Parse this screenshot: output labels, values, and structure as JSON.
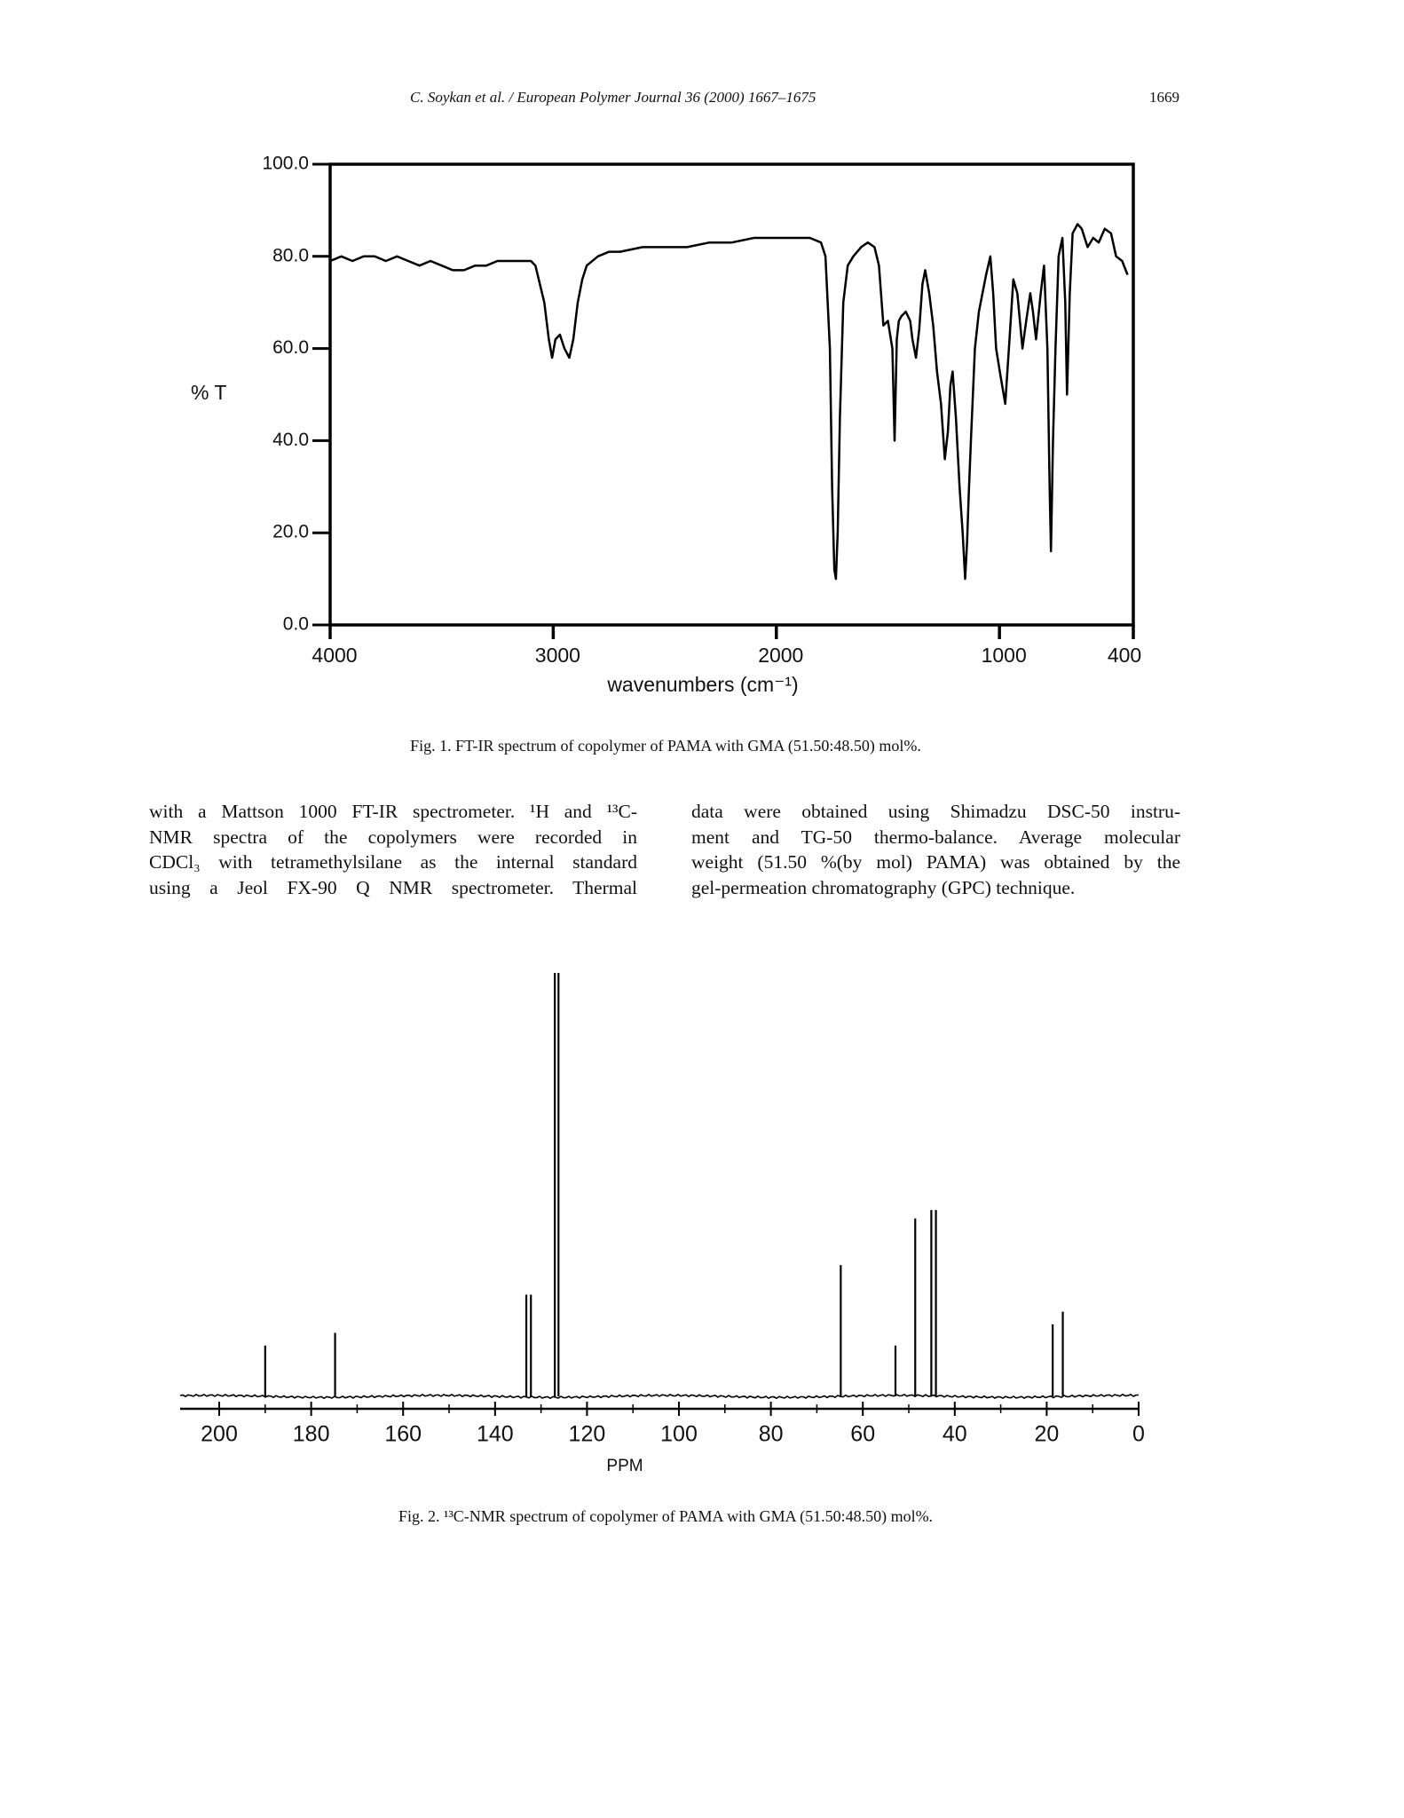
{
  "header": {
    "running_title": "C. Soykan et al. / European Polymer Journal 36 (2000) 1667–1675",
    "page_number": "1669"
  },
  "chart_data": [
    {
      "type": "line",
      "ylabel": "% T",
      "xlabel": "wavenumbers (cm⁻¹)",
      "x": [
        4000,
        3950,
        3900,
        3850,
        3800,
        3750,
        3700,
        3650,
        3600,
        3550,
        3500,
        3450,
        3400,
        3350,
        3300,
        3250,
        3200,
        3150,
        3100,
        3080,
        3060,
        3040,
        3020,
        3005,
        2990,
        2970,
        2950,
        2928,
        2910,
        2890,
        2870,
        2850,
        2800,
        2750,
        2700,
        2600,
        2500,
        2400,
        2300,
        2200,
        2100,
        2000,
        1900,
        1850,
        1800,
        1780,
        1760,
        1750,
        1740,
        1733,
        1725,
        1715,
        1700,
        1680,
        1655,
        1620,
        1590,
        1560,
        1540,
        1520,
        1500,
        1480,
        1470,
        1460,
        1451,
        1440,
        1420,
        1400,
        1390,
        1374,
        1360,
        1345,
        1333,
        1315,
        1297,
        1280,
        1262,
        1245,
        1231,
        1220,
        1210,
        1195,
        1179,
        1165,
        1154,
        1145,
        1138,
        1128,
        1110,
        1092,
        1060,
        1041,
        1028,
        1015,
        995,
        974,
        955,
        938,
        920,
        897,
        880,
        862,
        850,
        836,
        815,
        800,
        785,
        775,
        769,
        760,
        749,
        735,
        718,
        705,
        697,
        685,
        672,
        650,
        631,
        605,
        580,
        555,
        528,
        500,
        477,
        450,
        426
      ],
      "values": [
        79,
        80,
        79,
        80,
        80,
        79,
        80,
        79,
        78,
        79,
        78,
        77,
        77,
        78,
        78,
        79,
        79,
        79,
        79,
        78,
        74,
        70,
        62,
        58,
        62,
        63,
        60,
        58,
        62,
        70,
        75,
        78,
        80,
        81,
        81,
        82,
        82,
        82,
        83,
        83,
        84,
        84,
        84,
        84,
        83,
        80,
        60,
        30,
        12,
        10,
        20,
        45,
        70,
        78,
        80,
        82,
        83,
        82,
        78,
        65,
        66,
        60,
        40,
        62,
        66,
        67,
        68,
        66,
        62,
        58,
        64,
        74,
        77,
        72,
        65,
        55,
        48,
        36,
        42,
        52,
        55,
        45,
        30,
        20,
        10,
        18,
        28,
        40,
        60,
        68,
        76,
        80,
        72,
        60,
        54,
        48,
        62,
        75,
        72,
        60,
        66,
        72,
        68,
        62,
        72,
        78,
        60,
        30,
        16,
        40,
        60,
        80,
        84,
        70,
        50,
        72,
        85,
        87,
        86,
        82,
        84,
        83,
        86,
        85,
        80,
        79,
        76
      ],
      "color": "#000000",
      "xlim": [
        4000,
        400
      ],
      "ylim": [
        0,
        100
      ],
      "xticks": [
        4000,
        3000,
        2000,
        1000,
        400
      ],
      "yticks": [
        {
          "value": 0,
          "label": "0.0"
        },
        {
          "value": 20,
          "label": "20.0"
        },
        {
          "value": 40,
          "label": "40.0"
        },
        {
          "value": 60,
          "label": "60.0"
        },
        {
          "value": 80,
          "label": "80.0"
        },
        {
          "value": 100,
          "label": "100.0"
        }
      ]
    },
    {
      "type": "stem",
      "xlabel": "PPM",
      "x": [
        190.0,
        174.8,
        133.2,
        132.2,
        127.0,
        126.2,
        64.8,
        52.9,
        48.6,
        45.1,
        44.1,
        18.7,
        16.5
      ],
      "values": [
        12,
        15,
        24,
        24,
        100,
        100,
        31,
        12,
        42,
        44,
        44,
        17,
        20
      ],
      "color": "#000000",
      "xlim": [
        208.5,
        0
      ],
      "ylim": [
        0,
        100
      ],
      "xticks": [
        200,
        180,
        160,
        140,
        120,
        100,
        80,
        60,
        40,
        20,
        0
      ],
      "xminorticks": [
        190,
        170,
        150,
        130,
        110,
        90,
        70,
        50,
        30,
        10
      ]
    }
  ],
  "captions": [
    "Fig. 1. FT-IR spectrum of copolymer of PAMA with GMA (51.50:48.50) mol%.",
    "Fig. 2. ¹³C-NMR spectrum of copolymer of PAMA with GMA (51.50:48.50) mol%."
  ],
  "body": {
    "left_column": [
      "with a Mattson 1000 FT-IR spectrometer. ¹H and ¹³C-",
      "NMR spectra of the copolymers were recorded in",
      "CDCl₃ with tetramethylsilane as the internal standard",
      "using a Jeol FX-90 Q NMR spectrometer. Thermal"
    ],
    "right_column": [
      "data were obtained using Shimadzu DSC-50 instru-",
      "ment and TG-50 thermo-balance. Average molecular",
      "weight (51.50 %(by mol) PAMA) was obtained by the",
      "gel-permeation chromatography (GPC) technique."
    ]
  }
}
